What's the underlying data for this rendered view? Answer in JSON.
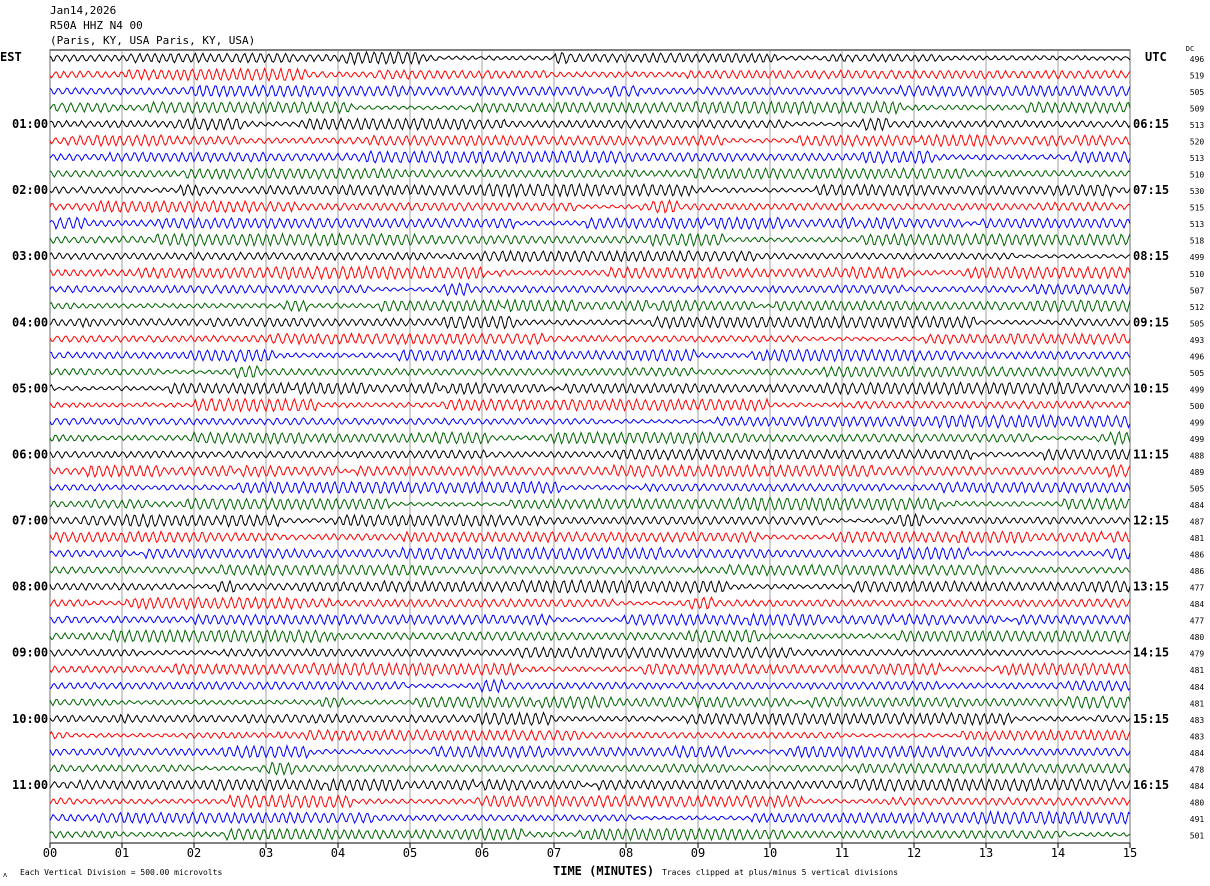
{
  "header": {
    "date": "Jan14,2026",
    "station": "R50A HHZ N4 00",
    "location": "(Paris, KY, USA Paris, KY, USA)"
  },
  "footer": {
    "scale": "Each Vertical Division =  500.00 microvolts",
    "xlabel": "TIME (MINUTES)",
    "clip_note": "Traces clipped at plus/minus 5 vertical divisions"
  },
  "chart_data": {
    "type": "line",
    "title": "R50A HHZ N4 00 helicorder",
    "xlabel": "TIME (MINUTES)",
    "xlim": [
      0,
      15
    ],
    "x_ticks": [
      "00",
      "01",
      "02",
      "03",
      "04",
      "05",
      "06",
      "07",
      "08",
      "09",
      "10",
      "11",
      "12",
      "13",
      "14",
      "15"
    ],
    "left_axis_label": "EST",
    "right_axis_label": "UTC",
    "dc_label": "DC",
    "left_time_labels": [
      "01:00",
      "02:00",
      "03:00",
      "04:00",
      "05:00",
      "06:00",
      "07:00",
      "08:00",
      "09:00",
      "10:00",
      "11:00"
    ],
    "right_time_labels": [
      "06:15",
      "07:15",
      "08:15",
      "09:15",
      "10:15",
      "11:15",
      "12:15",
      "13:15",
      "14:15",
      "15:15",
      "16:15"
    ],
    "trace_colors": [
      "#000000",
      "#ff0000",
      "#0000ff",
      "#006400"
    ],
    "dc_offsets": [
      "496",
      "519",
      "505",
      "509",
      "513",
      "520",
      "513",
      "510",
      "530",
      "515",
      "513",
      "518",
      "499",
      "510",
      "507",
      "512",
      "505",
      "493",
      "496",
      "505",
      "499",
      "500",
      "499",
      "499",
      "488",
      "489",
      "505",
      "484",
      "487",
      "481",
      "486",
      "486",
      "477",
      "484",
      "477",
      "480",
      "479",
      "481",
      "484",
      "481",
      "483",
      "483",
      "484",
      "478",
      "484",
      "480",
      "491",
      "501"
    ]
  }
}
